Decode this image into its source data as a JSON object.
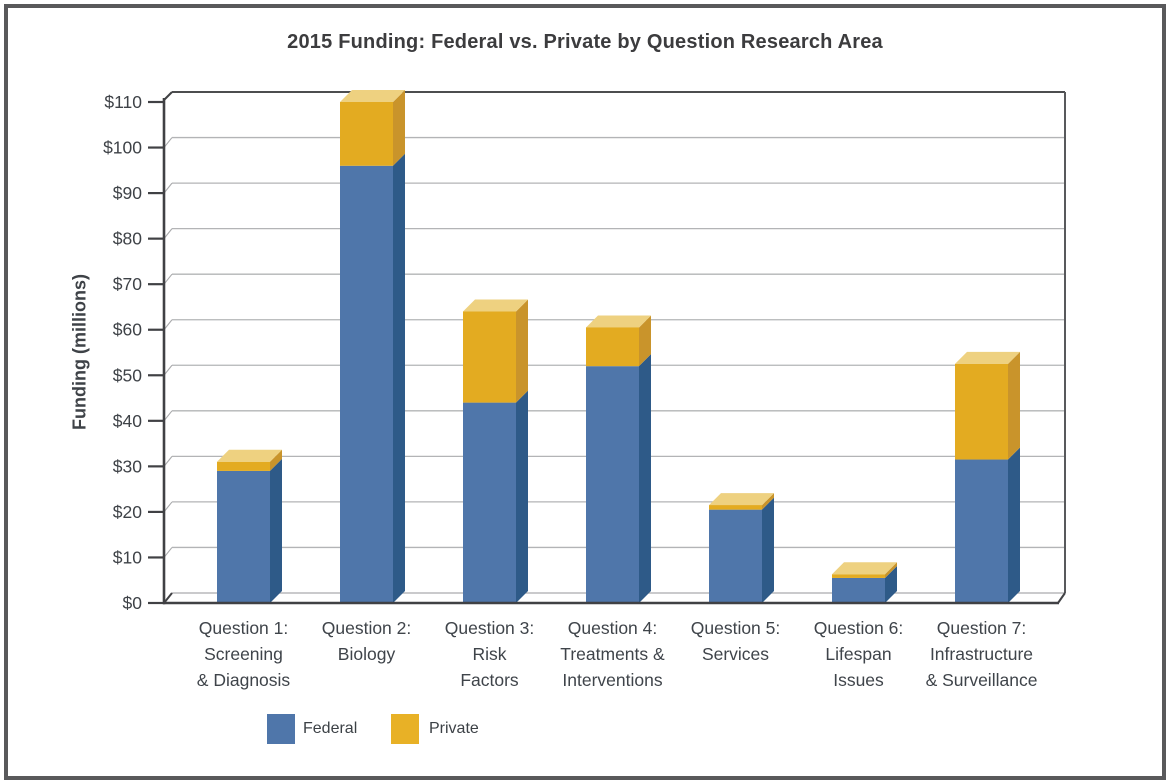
{
  "page": {
    "title": "2015 Funding: Federal vs. Private by Question Research Area"
  },
  "chart_data": {
    "type": "bar",
    "variant": "3d-stacked-column",
    "title": "2015 Funding: Federal vs. Private by Question Research Area",
    "ylabel": "Funding (millions)",
    "ylim": [
      0,
      110
    ],
    "ytick_interval": 10,
    "ytick_labels": [
      "$0",
      "$10",
      "$20",
      "$30",
      "$40",
      "$50",
      "$60",
      "$70",
      "$80",
      "$90",
      "$100",
      "$110"
    ],
    "grid": true,
    "legend_position": "bottom",
    "categories": [
      "Question 1: Screening & Diagnosis",
      "Question 2: Biology",
      "Question 3: Risk Factors",
      "Question 4: Treatments & Interventions",
      "Question 5: Services",
      "Question 6: Lifespan Issues",
      "Question 7: Infrastructure & Surveillance"
    ],
    "category_label_lines": [
      [
        "Question 1:",
        "Screening",
        "& Diagnosis"
      ],
      [
        "Question 2:",
        "Biology"
      ],
      [
        "Question 3:",
        "Risk",
        "Factors"
      ],
      [
        "Question 4:",
        "Treatments &",
        "Interventions"
      ],
      [
        "Question 5:",
        "Services"
      ],
      [
        "Question 6:",
        "Lifespan",
        "Issues"
      ],
      [
        "Question 7:",
        "Infrastructure",
        "& Surveillance"
      ]
    ],
    "series": [
      {
        "name": "Federal",
        "values": [
          29,
          96,
          44,
          52,
          20.5,
          5.5,
          31.5
        ],
        "color": "#4f76aa",
        "color_side": "#2e5a88"
      },
      {
        "name": "Private",
        "values": [
          2,
          14,
          20,
          8.5,
          1,
          0.8,
          21
        ],
        "color": "#e3ab21",
        "color_side": "#c9942b",
        "color_top": "#eed180"
      }
    ]
  },
  "legend": {
    "items": [
      {
        "label": "Federal",
        "color": "#4f76aa"
      },
      {
        "label": "Private",
        "color": "#e8b126"
      }
    ]
  },
  "colors": {
    "axis": "#404144",
    "gridline": "#b3b4b6",
    "tick_connector": "#a9aaac",
    "floor_edge": "#aaabad",
    "wall_edge": "#58595c",
    "text": "#3e4247",
    "outer_border": "#59595b",
    "background": "#ffffff"
  }
}
